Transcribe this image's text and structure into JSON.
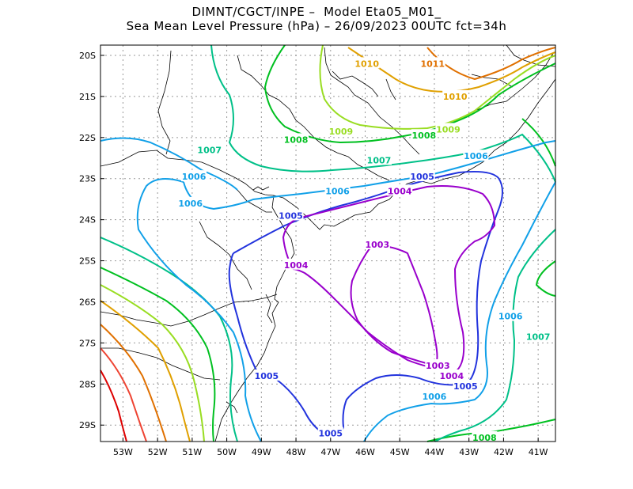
{
  "title": {
    "line1": "DIMNT/CGCT/INPE –  Model Eta05_M01_",
    "line2": "Sea Mean Level Pressure (hPa) – 26/09/2023 00UTC fct=34h"
  },
  "map": {
    "lon_range": [
      -53.65,
      -40.5
    ],
    "lat_range": [
      -29.4,
      -19.75
    ],
    "grid": true,
    "lon_ticks": [
      {
        "value": -53,
        "label": "53W"
      },
      {
        "value": -52,
        "label": "52W"
      },
      {
        "value": -51,
        "label": "51W"
      },
      {
        "value": -50,
        "label": "50W"
      },
      {
        "value": -49,
        "label": "49W"
      },
      {
        "value": -48,
        "label": "48W"
      },
      {
        "value": -47,
        "label": "47W"
      },
      {
        "value": -46,
        "label": "46W"
      },
      {
        "value": -45,
        "label": "45W"
      },
      {
        "value": -44,
        "label": "44W"
      },
      {
        "value": -43,
        "label": "43W"
      },
      {
        "value": -42,
        "label": "42W"
      },
      {
        "value": -41,
        "label": "41W"
      }
    ],
    "lat_ticks": [
      {
        "value": -20,
        "label": "20S"
      },
      {
        "value": -21,
        "label": "21S"
      },
      {
        "value": -22,
        "label": "22S"
      },
      {
        "value": -23,
        "label": "23S"
      },
      {
        "value": -24,
        "label": "24S"
      },
      {
        "value": -25,
        "label": "25S"
      },
      {
        "value": -26,
        "label": "26S"
      },
      {
        "value": -27,
        "label": "27S"
      },
      {
        "value": -28,
        "label": "28S"
      },
      {
        "value": -29,
        "label": "29S"
      }
    ],
    "colors": {
      "1003": "#9900cc",
      "1004": "#9900cc",
      "1005": "#2233dd",
      "1006": "#11a0e8",
      "1007": "#00c088",
      "1008": "#00c020",
      "1009": "#99dd22",
      "1010": "#e0a000",
      "1011": "#e07000",
      "1012": "#ee4433",
      "1013": "#dd0000",
      "coast": "#000000",
      "grid": "#999999"
    },
    "contour_labels": [
      {
        "text": "1010",
        "lon": -45.95,
        "lat": -20.2,
        "level": "1010"
      },
      {
        "text": "1011",
        "lon": -44.05,
        "lat": -20.2,
        "level": "1011"
      },
      {
        "text": "1010",
        "lon": -43.4,
        "lat": -21.0,
        "level": "1010"
      },
      {
        "text": "1009",
        "lon": -46.7,
        "lat": -21.85,
        "level": "1009"
      },
      {
        "text": "1009",
        "lon": -43.6,
        "lat": -21.8,
        "level": "1009"
      },
      {
        "text": "1008",
        "lon": -48.0,
        "lat": -22.05,
        "level": "1008"
      },
      {
        "text": "1008",
        "lon": -44.3,
        "lat": -21.95,
        "level": "1008"
      },
      {
        "text": "1007",
        "lon": -50.5,
        "lat": -22.3,
        "level": "1007"
      },
      {
        "text": "1007",
        "lon": -45.6,
        "lat": -22.55,
        "level": "1007"
      },
      {
        "text": "1006",
        "lon": -42.8,
        "lat": -22.45,
        "level": "1006"
      },
      {
        "text": "1006",
        "lon": -50.95,
        "lat": -22.95,
        "level": "1006"
      },
      {
        "text": "1006",
        "lon": -51.05,
        "lat": -23.6,
        "level": "1006"
      },
      {
        "text": "1006",
        "lon": -46.8,
        "lat": -23.3,
        "level": "1006"
      },
      {
        "text": "1005",
        "lon": -44.35,
        "lat": -22.95,
        "level": "1005"
      },
      {
        "text": "1004",
        "lon": -45.0,
        "lat": -23.3,
        "level": "1004"
      },
      {
        "text": "1005",
        "lon": -48.15,
        "lat": -23.9,
        "level": "1005"
      },
      {
        "text": "1004",
        "lon": -48.0,
        "lat": -25.1,
        "level": "1004"
      },
      {
        "text": "1003",
        "lon": -45.65,
        "lat": -24.6,
        "level": "1003"
      },
      {
        "text": "1006",
        "lon": -41.8,
        "lat": -26.35,
        "level": "1006"
      },
      {
        "text": "1007",
        "lon": -41.0,
        "lat": -26.85,
        "level": "1007"
      },
      {
        "text": "1003",
        "lon": -43.9,
        "lat": -27.55,
        "level": "1003"
      },
      {
        "text": "1004",
        "lon": -43.5,
        "lat": -27.8,
        "level": "1004"
      },
      {
        "text": "1005",
        "lon": -43.1,
        "lat": -28.05,
        "level": "1005"
      },
      {
        "text": "1006",
        "lon": -44.0,
        "lat": -28.3,
        "level": "1006"
      },
      {
        "text": "1005",
        "lon": -48.85,
        "lat": -27.8,
        "level": "1005"
      },
      {
        "text": "1005",
        "lon": -47.0,
        "lat": -29.2,
        "level": "1005"
      },
      {
        "text": "1008",
        "lon": -42.55,
        "lat": -29.3,
        "level": "1008"
      }
    ]
  }
}
